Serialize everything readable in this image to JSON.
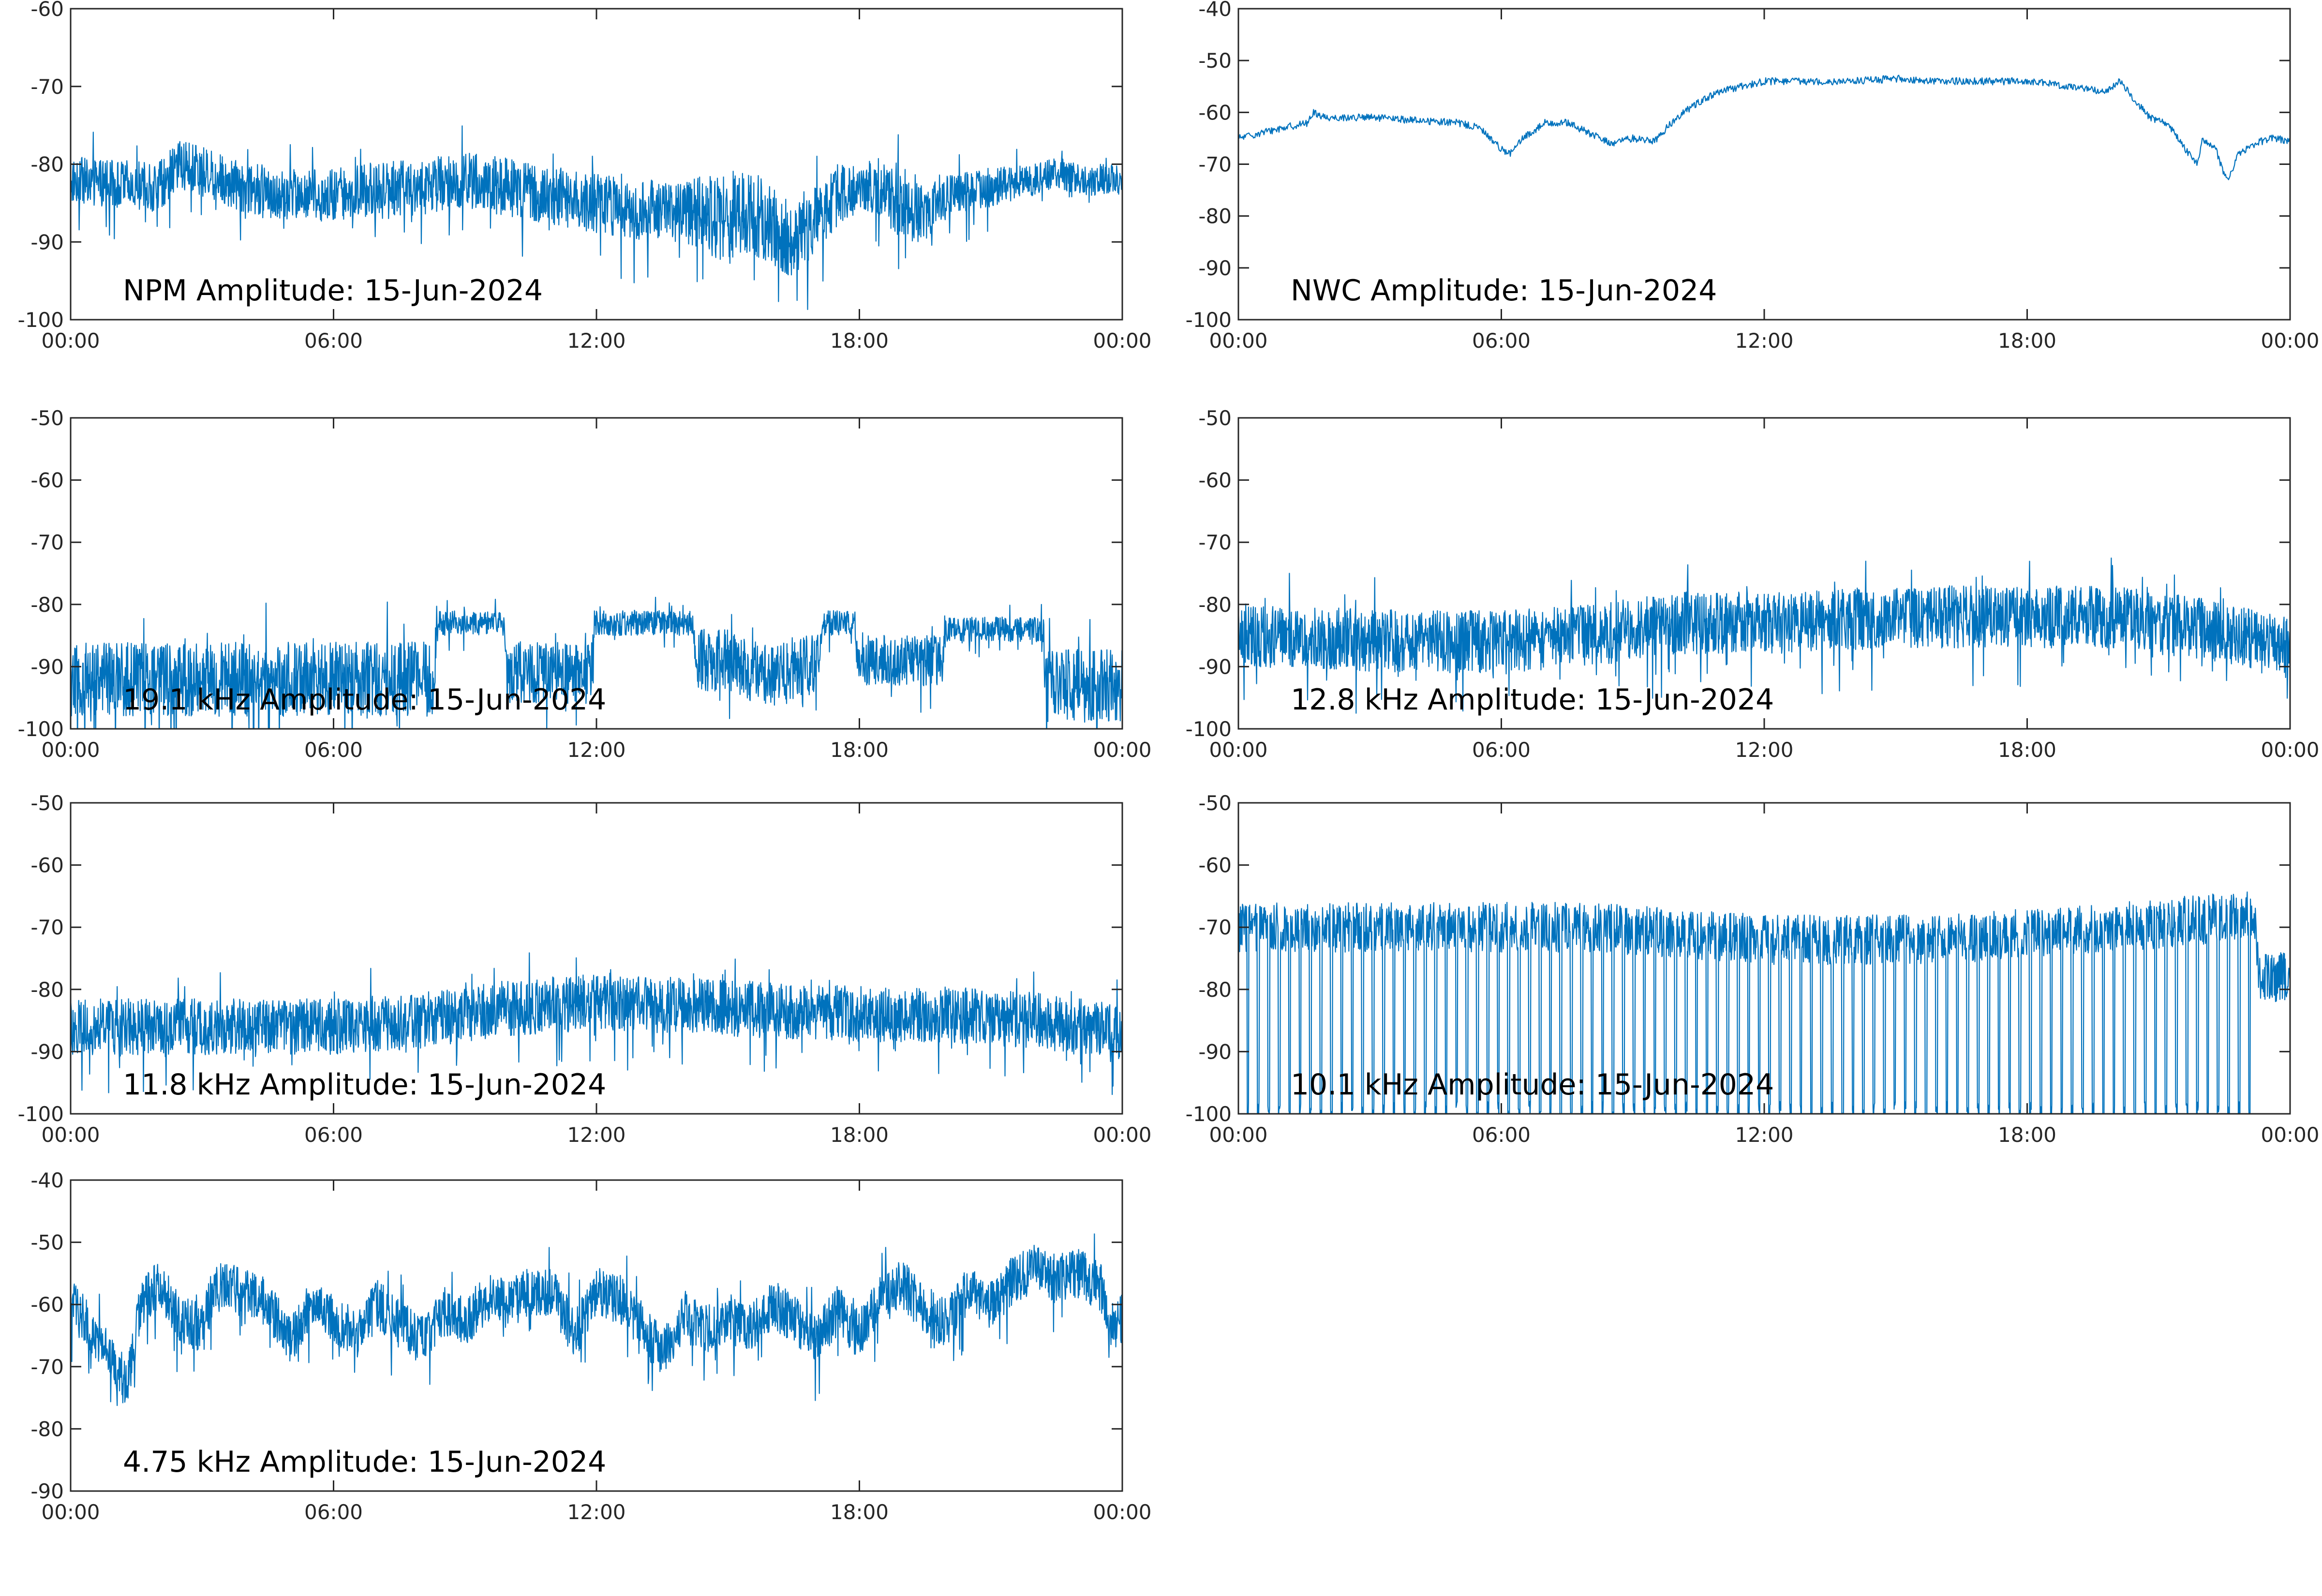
{
  "chart_data": [
    {
      "type": "line",
      "title": "NPM Amplitude: 15-Jun-2024",
      "x_ticks": [
        "00:00",
        "06:00",
        "12:00",
        "18:00",
        "00:00"
      ],
      "ylim": [
        -100,
        -60
      ],
      "y_ticks": [
        -100,
        -90,
        -80,
        -70,
        -60
      ],
      "grid": false,
      "color": "#0072BD",
      "series": [
        {
          "trend": [
            [
              0,
              -82
            ],
            [
              2,
              -83
            ],
            [
              2.5,
              -80
            ],
            [
              3,
              -81
            ],
            [
              4,
              -83
            ],
            [
              5,
              -84
            ],
            [
              6,
              -84
            ],
            [
              7,
              -83
            ],
            [
              8,
              -83
            ],
            [
              9,
              -82
            ],
            [
              10,
              -83
            ],
            [
              11,
              -84
            ],
            [
              12,
              -85
            ],
            [
              13,
              -86
            ],
            [
              14,
              -86
            ],
            [
              15,
              -87
            ],
            [
              15.5,
              -86
            ],
            [
              16,
              -88
            ],
            [
              16.5,
              -90
            ],
            [
              17,
              -87
            ],
            [
              17.5,
              -84
            ],
            [
              18,
              -83
            ],
            [
              18.5,
              -83
            ],
            [
              19,
              -85
            ],
            [
              19.5,
              -86
            ],
            [
              20,
              -84
            ],
            [
              21,
              -83
            ],
            [
              22,
              -82
            ],
            [
              22.5,
              -81
            ],
            [
              23,
              -82
            ],
            [
              24,
              -82
            ]
          ],
          "spread": [
            [
              0,
              3
            ],
            [
              14,
              4
            ],
            [
              15,
              6
            ],
            [
              16,
              5
            ],
            [
              17.5,
              4
            ],
            [
              18,
              3
            ],
            [
              19,
              5
            ],
            [
              20,
              3
            ],
            [
              22,
              2
            ],
            [
              24,
              2
            ]
          ]
        }
      ]
    },
    {
      "type": "line",
      "title": "NWC Amplitude: 15-Jun-2024",
      "x_ticks": [
        "00:00",
        "06:00",
        "12:00",
        "18:00",
        "00:00"
      ],
      "ylim": [
        -100,
        -40
      ],
      "y_ticks": [
        -100,
        -90,
        -80,
        -70,
        -60,
        -50,
        -40
      ],
      "grid": false,
      "color": "#0072BD",
      "series": [
        {
          "trend": [
            [
              0,
              -65
            ],
            [
              0.5,
              -64
            ],
            [
              1,
              -63
            ],
            [
              1.6,
              -62
            ],
            [
              1.7,
              -60
            ],
            [
              2,
              -61
            ],
            [
              3,
              -61
            ],
            [
              4,
              -61.5
            ],
            [
              5,
              -62
            ],
            [
              5.5,
              -63
            ],
            [
              6,
              -67
            ],
            [
              6.2,
              -68
            ],
            [
              6.5,
              -65
            ],
            [
              7,
              -62
            ],
            [
              7.5,
              -62
            ],
            [
              8,
              -64
            ],
            [
              8.5,
              -66
            ],
            [
              9,
              -65
            ],
            [
              9.5,
              -65.5
            ],
            [
              10,
              -61
            ],
            [
              10.5,
              -58
            ],
            [
              11,
              -56
            ],
            [
              12,
              -54
            ],
            [
              13,
              -54
            ],
            [
              14,
              -54
            ],
            [
              15,
              -53.5
            ],
            [
              16,
              -54
            ],
            [
              17,
              -54
            ],
            [
              18,
              -54
            ],
            [
              19,
              -55
            ],
            [
              19.8,
              -56
            ],
            [
              20.1,
              -54
            ],
            [
              20.4,
              -57
            ],
            [
              20.8,
              -61
            ],
            [
              21.2,
              -62
            ],
            [
              21.6,
              -67
            ],
            [
              21.9,
              -70
            ],
            [
              22,
              -65
            ],
            [
              22.3,
              -67
            ],
            [
              22.5,
              -72
            ],
            [
              22.6,
              -73
            ],
            [
              22.8,
              -68
            ],
            [
              23.2,
              -66
            ],
            [
              23.6,
              -65
            ],
            [
              24,
              -65.5
            ]
          ],
          "spread": [
            [
              0,
              0.7
            ],
            [
              24,
              0.7
            ]
          ]
        }
      ]
    },
    {
      "type": "line",
      "title": "19.1 kHz Amplitude: 15-Jun-2024",
      "x_ticks": [
        "00:00",
        "06:00",
        "12:00",
        "18:00",
        "00:00"
      ],
      "ylim": [
        -100,
        -50
      ],
      "y_ticks": [
        -100,
        -90,
        -80,
        -70,
        -60,
        -50
      ],
      "grid": false,
      "color": "#0072BD",
      "series": [
        {
          "trend": [
            [
              0,
              -92
            ],
            [
              8.3,
              -92
            ],
            [
              8.35,
              -83
            ],
            [
              9.9,
              -83
            ],
            [
              9.95,
              -91
            ],
            [
              11.9,
              -91
            ],
            [
              11.95,
              -83
            ],
            [
              14.2,
              -83
            ],
            [
              14.25,
              -89
            ],
            [
              15,
              -89
            ],
            [
              16,
              -92
            ],
            [
              17,
              -89
            ],
            [
              17.2,
              -83
            ],
            [
              17.9,
              -83
            ],
            [
              17.95,
              -89
            ],
            [
              19.9,
              -89
            ],
            [
              19.95,
              -84
            ],
            [
              22.2,
              -84
            ],
            [
              22.25,
              -93
            ],
            [
              24,
              -93
            ]
          ],
          "spread": [
            [
              0,
              6
            ],
            [
              8.3,
              6
            ],
            [
              8.4,
              2
            ],
            [
              9.9,
              2
            ],
            [
              10,
              5
            ],
            [
              11.9,
              5
            ],
            [
              12,
              2
            ],
            [
              14.2,
              2
            ],
            [
              14.3,
              5
            ],
            [
              17,
              5
            ],
            [
              17.2,
              2
            ],
            [
              17.9,
              2
            ],
            [
              18,
              4
            ],
            [
              19.9,
              4
            ],
            [
              20,
              2
            ],
            [
              22.2,
              2
            ],
            [
              22.3,
              6
            ],
            [
              24,
              6
            ]
          ]
        }
      ]
    },
    {
      "type": "line",
      "title": "12.8 kHz Amplitude: 15-Jun-2024",
      "x_ticks": [
        "00:00",
        "06:00",
        "12:00",
        "18:00",
        "00:00"
      ],
      "ylim": [
        -100,
        -50
      ],
      "y_ticks": [
        -100,
        -90,
        -80,
        -70,
        -60,
        -50
      ],
      "grid": false,
      "color": "#0072BD",
      "series": [
        {
          "trend": [
            [
              0,
              -85
            ],
            [
              4,
              -86
            ],
            [
              6,
              -86
            ],
            [
              8,
              -85
            ],
            [
              10,
              -83
            ],
            [
              12,
              -83
            ],
            [
              15,
              -82
            ],
            [
              18,
              -82
            ],
            [
              20,
              -82
            ],
            [
              22,
              -84
            ],
            [
              24,
              -87
            ]
          ],
          "spread": [
            [
              0,
              5
            ],
            [
              24,
              5
            ]
          ]
        }
      ]
    },
    {
      "type": "line",
      "title": "11.8 kHz Amplitude: 15-Jun-2024",
      "x_ticks": [
        "00:00",
        "06:00",
        "12:00",
        "18:00",
        "00:00"
      ],
      "ylim": [
        -100,
        -50
      ],
      "y_ticks": [
        -100,
        -90,
        -80,
        -70,
        -60,
        -50
      ],
      "grid": false,
      "color": "#0072BD",
      "series": [
        {
          "trend": [
            [
              0,
              -86
            ],
            [
              3,
              -86
            ],
            [
              6,
              -86
            ],
            [
              8,
              -85
            ],
            [
              10,
              -83
            ],
            [
              12,
              -82
            ],
            [
              15,
              -83
            ],
            [
              18,
              -84
            ],
            [
              20,
              -84
            ],
            [
              22,
              -85
            ],
            [
              24,
              -87
            ]
          ],
          "spread": [
            [
              0,
              4.5
            ],
            [
              24,
              4.5
            ]
          ]
        }
      ]
    },
    {
      "type": "line",
      "title": "10.1 kHz Amplitude: 15-Jun-2024",
      "x_ticks": [
        "00:00",
        "06:00",
        "12:00",
        "18:00",
        "00:00"
      ],
      "ylim": [
        -100,
        -50
      ],
      "y_ticks": [
        -100,
        -90,
        -80,
        -70,
        -60,
        -50
      ],
      "grid": false,
      "color": "#0072BD",
      "series": [
        {
          "trend": [
            [
              0,
              -70
            ],
            [
              8,
              -70
            ],
            [
              12,
              -72
            ],
            [
              16,
              -72
            ],
            [
              20,
              -70
            ],
            [
              23.2,
              -68
            ],
            [
              23.3,
              -78
            ],
            [
              24,
              -78
            ]
          ],
          "spread": [
            [
              0,
              4
            ],
            [
              24,
              4
            ]
          ]
        }
      ]
    },
    {
      "type": "line",
      "title": "4.75 kHz Amplitude: 15-Jun-2024",
      "x_ticks": [
        "00:00",
        "06:00",
        "12:00",
        "18:00",
        "00:00"
      ],
      "ylim": [
        -90,
        -40
      ],
      "y_ticks": [
        -90,
        -80,
        -70,
        -60,
        -50,
        -40
      ],
      "grid": false,
      "color": "#0072BD",
      "series": [
        {
          "trend": [
            [
              0,
              -60
            ],
            [
              0.5,
              -64
            ],
            [
              1,
              -70
            ],
            [
              1.3,
              -73
            ],
            [
              1.6,
              -60
            ],
            [
              2,
              -57
            ],
            [
              2.5,
              -62
            ],
            [
              3,
              -64
            ],
            [
              3.3,
              -57
            ],
            [
              4,
              -58
            ],
            [
              4.5,
              -60
            ],
            [
              5,
              -66
            ],
            [
              5.5,
              -60
            ],
            [
              6,
              -62
            ],
            [
              6.5,
              -65
            ],
            [
              7,
              -60
            ],
            [
              7.5,
              -63
            ],
            [
              8,
              -66
            ],
            [
              8.5,
              -61
            ],
            [
              9,
              -63
            ],
            [
              9.5,
              -59
            ],
            [
              10,
              -60
            ],
            [
              10.5,
              -58
            ],
            [
              11,
              -58
            ],
            [
              11.5,
              -65
            ],
            [
              12,
              -58
            ],
            [
              12.5,
              -59
            ],
            [
              13,
              -63
            ],
            [
              13.5,
              -68
            ],
            [
              14,
              -62
            ],
            [
              14.5,
              -64
            ],
            [
              15,
              -62
            ],
            [
              15.5,
              -64
            ],
            [
              16,
              -60
            ],
            [
              16.5,
              -62
            ],
            [
              17,
              -66
            ],
            [
              17.5,
              -61
            ],
            [
              18,
              -65
            ],
            [
              18.5,
              -58
            ],
            [
              19,
              -57
            ],
            [
              19.5,
              -61
            ],
            [
              20,
              -63
            ],
            [
              20.5,
              -58
            ],
            [
              21,
              -60
            ],
            [
              21.5,
              -56
            ],
            [
              22,
              -54
            ],
            [
              22.5,
              -56
            ],
            [
              23,
              -55
            ],
            [
              23.5,
              -57
            ],
            [
              23.8,
              -64
            ],
            [
              24,
              -62
            ]
          ],
          "spread": [
            [
              0,
              4
            ],
            [
              24,
              4
            ]
          ]
        }
      ]
    }
  ]
}
